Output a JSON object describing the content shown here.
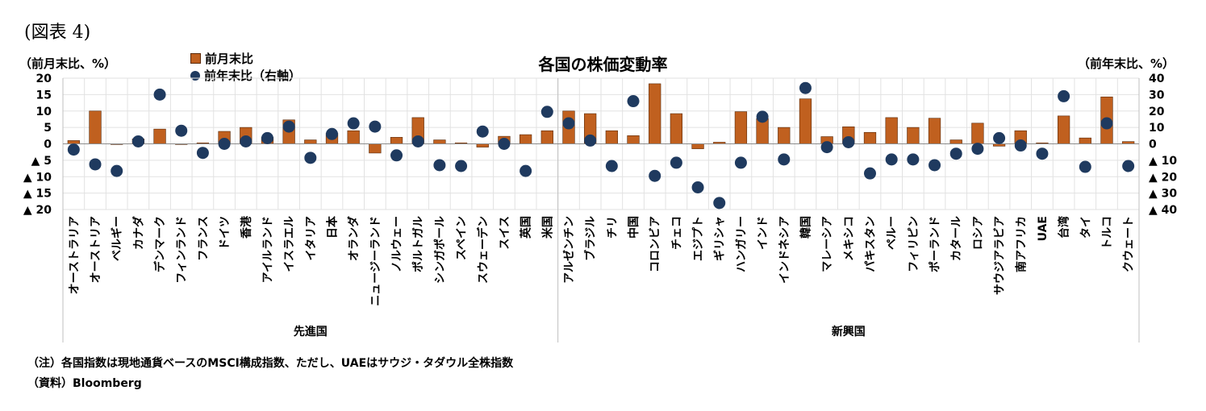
{
  "figure_label": "(図表 4)",
  "footnotes": {
    "note": "（注）各国指数は現地通貨ベースのMSCI構成指数、ただし、UAEはサウジ・タダウル全株指数",
    "source": "（資料）Bloomberg"
  },
  "colors": {
    "bar": "#c0601f",
    "bar_edge": "#5a2a0a",
    "dot": "#1f3a5f",
    "grid": "#e2e2e2",
    "axis": "#bfbfbf"
  },
  "chart_data": {
    "type": "bar",
    "title": "各国の株価変動率",
    "ylabel": "（前月末比、%）",
    "ylabel_right": "（前年末比、%）",
    "ylim": [
      -20,
      20
    ],
    "ylim_right": [
      -40,
      40
    ],
    "yticks_left": [
      "20",
      "15",
      "10",
      "5",
      "0",
      "▲ 5",
      "▲ 10",
      "▲ 15",
      "▲ 20"
    ],
    "yticks_right": [
      "40",
      "30",
      "20",
      "10",
      "0",
      "▲ 10",
      "▲ 20",
      "▲ 30",
      "▲ 40"
    ],
    "grid": true,
    "legend_position": "top-left",
    "categories": [
      "オーストラリア",
      "オーストリア",
      "ベルギー",
      "カナダ",
      "デンマーク",
      "フィンランド",
      "フランス",
      "ドイツ",
      "香港",
      "アイルランド",
      "イスラエル",
      "イタリア",
      "日本",
      "オランダ",
      "ニュージーランド",
      "ノルウェー",
      "ポルトガル",
      "シンガポール",
      "スペイン",
      "スウェーデン",
      "スイス",
      "英国",
      "米国",
      "アルゼンチン",
      "ブラジル",
      "チリ",
      "中国",
      "コロンビア",
      "チェコ",
      "エジプト",
      "ギリシャ",
      "ハンガリー",
      "インド",
      "インドネシア",
      "韓国",
      "マレーシア",
      "メキシコ",
      "パキスタン",
      "ペルー",
      "フィリピン",
      "ポーランド",
      "カタール",
      "ロシア",
      "サウジアラビア",
      "南アフリカ",
      "UAE",
      "台湾",
      "タイ",
      "トルコ",
      "クウェート"
    ],
    "groups": [
      {
        "label": "先進国",
        "count": 23
      },
      {
        "label": "新興国",
        "count": 27
      }
    ],
    "series": [
      {
        "name": "前月末比",
        "type": "bar",
        "axis": "left",
        "values": [
          1.0,
          10.0,
          -0.2,
          1.5,
          4.5,
          0.0,
          0.3,
          3.8,
          5.0,
          2.0,
          7.3,
          1.2,
          3.2,
          4.0,
          -2.8,
          2.0,
          8.0,
          1.2,
          0.3,
          -1.0,
          2.3,
          2.8,
          4.0,
          10.0,
          9.2,
          4.0,
          2.5,
          18.3,
          9.2,
          -1.5,
          0.5,
          9.8,
          7.7,
          5.0,
          13.7,
          2.2,
          5.2,
          3.5,
          8.0,
          5.0,
          7.8,
          1.2,
          6.3,
          -0.7,
          4.0,
          0.3,
          8.5,
          1.8,
          14.3,
          0.7
        ]
      },
      {
        "name": "前年末比（右軸）",
        "type": "scatter",
        "axis": "right",
        "values": [
          -3.5,
          -12.5,
          -16.5,
          1.5,
          30.0,
          8.0,
          -5.5,
          0.0,
          1.5,
          3.5,
          10.5,
          -8.5,
          6.0,
          12.5,
          10.5,
          -7.0,
          1.5,
          -13.0,
          -13.5,
          7.5,
          0.0,
          -16.5,
          19.5,
          12.5,
          2.0,
          -13.5,
          26.0,
          -19.5,
          -11.5,
          -26.5,
          -36.0,
          -11.5,
          16.5,
          -9.5,
          34.0,
          -2.0,
          1.0,
          -18.0,
          -9.5,
          -9.5,
          -13.0,
          -6.0,
          -3.0,
          3.5,
          -1.0,
          -6.0,
          29.0,
          -14.0,
          12.5,
          -13.5
        ]
      }
    ]
  }
}
